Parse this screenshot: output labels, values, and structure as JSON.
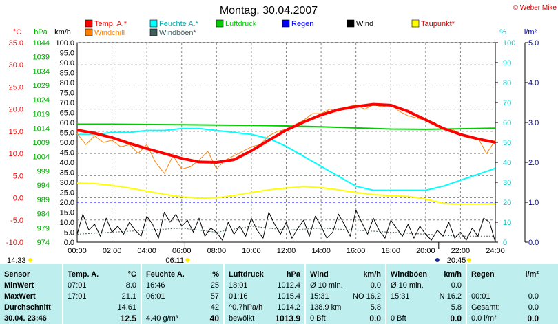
{
  "header": {
    "title": "Montag, 30.04.2007",
    "copyright": "© Weber Mike"
  },
  "legend": [
    {
      "label": "Temp. A.*",
      "color": "#ff0000"
    },
    {
      "label": "Windchill",
      "color": "#ff8000"
    },
    {
      "label": "Feuchte A.*",
      "color": "#00ffff"
    },
    {
      "label": "Windböen*",
      "color": "#406060"
    },
    {
      "label": "Luftdruck",
      "color": "#00cc00"
    },
    {
      "label": "Regen",
      "color": "#0000ff"
    },
    {
      "label": "Wind",
      "color": "#000000"
    },
    {
      "label": "Taupunkt*",
      "color": "#ffff00"
    }
  ],
  "axes": {
    "temp": {
      "unit": "°C",
      "color": "#ff0000",
      "ticks": [
        "35.0",
        "30.0",
        "25.0",
        "20.0",
        "15.0",
        "10.0",
        "5.0",
        "0.0",
        "-5.0",
        "-10.0"
      ]
    },
    "pressure": {
      "unit": "hPa",
      "color": "#00aa00",
      "ticks": [
        "1044",
        "1039",
        "1034",
        "1029",
        "1024",
        "1019",
        "1014",
        "1009",
        "1004",
        "999",
        "994",
        "989",
        "984",
        "979",
        "974"
      ]
    },
    "wind": {
      "unit": "km/h",
      "color": "#000000",
      "ticks": [
        "100.0",
        "95.0",
        "90.0",
        "85.0",
        "80.0",
        "75.0",
        "70.0",
        "65.0",
        "60.0",
        "55.0",
        "50.0",
        "45.0",
        "40.0",
        "35.0",
        "30.0",
        "25.0",
        "20.0",
        "15.0",
        "10.0",
        "5.0",
        "0.0"
      ]
    },
    "humidity": {
      "unit": "%",
      "color": "#00cccc",
      "ticks": [
        "100",
        "90",
        "80",
        "70",
        "60",
        "50",
        "40",
        "30",
        "20",
        "10",
        "0"
      ]
    },
    "rain": {
      "unit": "l/m²",
      "color": "#0000aa",
      "ticks": [
        "5.0",
        "4.0",
        "3.0",
        "2.0",
        "1.0",
        "0.0"
      ]
    },
    "time": {
      "ticks": [
        "00:00",
        "02:00",
        "04:00",
        "06:00",
        "08:00",
        "10:00",
        "12:00",
        "14:00",
        "16:00",
        "18:00",
        "20:00",
        "22:00",
        "24:00"
      ]
    }
  },
  "sun_markers": {
    "sunrise_prev": "14:33",
    "sunrise": "06:11",
    "sunset": "20:45"
  },
  "chart_data": {
    "type": "line",
    "x_unit": "hour",
    "xlim": [
      0,
      24
    ],
    "series": [
      {
        "name": "Temp. A.*",
        "axis": "°C",
        "color": "#ff0000",
        "x": [
          0,
          1,
          2,
          3,
          4,
          5,
          6,
          7,
          8,
          9,
          10,
          11,
          12,
          13,
          14,
          15,
          16,
          17,
          18,
          19,
          20,
          21,
          22,
          23,
          24
        ],
        "y": [
          15.3,
          14.6,
          13.6,
          12.3,
          11.1,
          10.0,
          8.9,
          8.1,
          8.0,
          8.6,
          10.6,
          13.0,
          15.3,
          17.1,
          18.7,
          19.9,
          20.6,
          21.1,
          20.9,
          19.5,
          17.6,
          15.7,
          14.3,
          13.3,
          12.5
        ]
      },
      {
        "name": "Windchill",
        "axis": "°C",
        "color": "#ff8000",
        "x": [
          0,
          0.5,
          1,
          1.5,
          2,
          2.5,
          3,
          3.5,
          4,
          4.5,
          5,
          5.5,
          6,
          6.5,
          7,
          7.5,
          8,
          8.5,
          9,
          9.5,
          10,
          10.5,
          11,
          11.5,
          12,
          12.5,
          13,
          13.5,
          14,
          14.5,
          15,
          15.5,
          16,
          16.5,
          17,
          17.5,
          18,
          18.5,
          19,
          19.5,
          20,
          20.5,
          21,
          21.5,
          22,
          22.5,
          23,
          23.5,
          24
        ],
        "y": [
          14.5,
          12.0,
          14.0,
          12.5,
          13.0,
          11.5,
          12.0,
          10.0,
          12.0,
          8.0,
          5.5,
          9.5,
          6.5,
          7.0,
          8.5,
          10.5,
          6.5,
          8.5,
          9.5,
          10.5,
          11.5,
          12.0,
          14.0,
          15.0,
          15.5,
          16.5,
          17.5,
          19.0,
          19.0,
          20.0,
          19.5,
          20.5,
          21.0,
          20.0,
          21.0,
          20.5,
          21.0,
          19.5,
          18.5,
          18.0,
          17.5,
          17.0,
          15.5,
          15.5,
          14.5,
          13.5,
          13.5,
          10.0,
          13.0
        ]
      },
      {
        "name": "Feuchte A.*",
        "axis": "%",
        "color": "#00ffff",
        "x": [
          0,
          1,
          2,
          3,
          4,
          5,
          6,
          7,
          8,
          9,
          10,
          11,
          12,
          13,
          14,
          15,
          16,
          17,
          18,
          19,
          20,
          21,
          22,
          23,
          24
        ],
        "y": [
          54,
          54,
          55,
          55,
          56,
          56,
          57,
          57,
          56,
          55,
          54,
          52,
          48,
          43,
          38,
          33,
          28,
          26,
          26,
          26,
          26,
          28,
          31,
          34,
          37
        ]
      },
      {
        "name": "Luftdruck",
        "axis": "hPa",
        "color": "#00cc00",
        "x": [
          0,
          2,
          4,
          6,
          8,
          10,
          12,
          14,
          16,
          18,
          20,
          22,
          24
        ],
        "y": [
          1015.4,
          1015.4,
          1015.3,
          1015.2,
          1015.1,
          1015.0,
          1014.8,
          1014.5,
          1014.1,
          1013.7,
          1013.6,
          1013.8,
          1014.0
        ]
      },
      {
        "name": "Taupunkt*",
        "axis": "°C",
        "color": "#ffff00",
        "x": [
          0,
          1,
          2,
          3,
          4,
          5,
          6,
          7,
          8,
          9,
          10,
          11,
          12,
          13,
          14,
          15,
          16,
          17,
          18,
          19,
          20,
          21,
          22,
          23,
          24
        ],
        "y": [
          3.3,
          3.2,
          2.8,
          2.2,
          1.5,
          0.8,
          0.2,
          -0.1,
          0.0,
          0.5,
          1.2,
          1.8,
          2.2,
          2.5,
          2.3,
          1.8,
          1.2,
          0.7,
          0.5,
          0.3,
          -0.3,
          -1.2,
          -1.4,
          -1.4,
          -1.3
        ]
      },
      {
        "name": "Regen",
        "axis": "l/m²",
        "color": "#0000ff",
        "x": [
          0,
          24
        ],
        "y": [
          1.0,
          1.0
        ]
      },
      {
        "name": "Wind",
        "axis": "km/h",
        "color": "#000000",
        "x": [
          0,
          0.33,
          0.67,
          1,
          1.33,
          1.67,
          2,
          2.33,
          2.67,
          3,
          3.33,
          3.67,
          4,
          4.33,
          4.67,
          5,
          5.33,
          5.67,
          6,
          6.33,
          6.67,
          7,
          7.33,
          7.67,
          8,
          8.33,
          8.67,
          9,
          9.33,
          9.67,
          10,
          10.33,
          10.67,
          11,
          11.33,
          11.67,
          12,
          12.33,
          12.67,
          13,
          13.33,
          13.67,
          14,
          14.33,
          14.67,
          15,
          15.33,
          15.67,
          16,
          16.33,
          16.67,
          17,
          17.33,
          17.67,
          18,
          18.33,
          18.67,
          19,
          19.33,
          19.67,
          20,
          20.33,
          20.67,
          21,
          21.33,
          21.67,
          22,
          22.33,
          22.67,
          23,
          23.33,
          23.67,
          24
        ],
        "y": [
          4,
          14,
          6,
          9,
          3,
          12,
          5,
          8,
          4,
          10,
          6,
          3,
          13,
          9,
          2,
          15,
          10,
          14,
          8,
          11,
          5,
          12,
          3,
          7,
          5,
          1,
          10,
          4,
          8,
          3,
          12,
          6,
          2,
          15,
          9,
          4,
          10,
          2,
          7,
          11,
          3,
          13,
          8,
          2,
          5,
          14,
          9,
          3,
          16,
          10,
          4,
          12,
          6,
          2,
          11,
          7,
          3,
          9,
          2,
          8,
          4,
          1,
          6,
          3,
          10,
          2,
          5,
          1,
          7,
          3,
          12,
          10,
          0
        ]
      },
      {
        "name": "Windböen*",
        "axis": "km/h",
        "color": "#406060",
        "x": [
          0,
          2,
          4,
          6,
          8,
          10,
          12,
          14,
          16,
          18,
          20,
          22,
          24
        ],
        "y": [
          4,
          5,
          6,
          7,
          5,
          8,
          6,
          7,
          6,
          5,
          4,
          3,
          3
        ]
      }
    ]
  },
  "table": {
    "columns": [
      {
        "name": "Sensor",
        "unit": "",
        "rows": [
          [
            "MinWert",
            ""
          ],
          [
            "MaxWert",
            ""
          ],
          [
            "Durchschnitt",
            ""
          ],
          [
            "30.04. 23:46",
            ""
          ]
        ]
      },
      {
        "name": "Temp. A.",
        "unit": "°C",
        "rows": [
          [
            "07:01",
            "8.0"
          ],
          [
            "17:01",
            "21.1"
          ],
          [
            "",
            "14.61"
          ],
          [
            "",
            "12.5"
          ]
        ]
      },
      {
        "name": "Feuchte A.",
        "unit": "%",
        "rows": [
          [
            "16:46",
            "25"
          ],
          [
            "06:01",
            "57"
          ],
          [
            "",
            "42"
          ],
          [
            "4.40 g/m³",
            "40"
          ]
        ]
      },
      {
        "name": "Luftdruck",
        "unit": "hPa",
        "rows": [
          [
            "18:01",
            "1012.4"
          ],
          [
            "01:16",
            "1015.4"
          ],
          [
            "^0.7hPa/h",
            "1014.2"
          ],
          [
            "bewölkt",
            "1013.9"
          ]
        ]
      },
      {
        "name": "Wind",
        "unit": "km/h",
        "rows": [
          [
            "Ø 10 min.",
            "0.0"
          ],
          [
            "15:31",
            "NO 16.2"
          ],
          [
            "138.9 km",
            "5.8"
          ],
          [
            "0 Bft",
            "0.0"
          ]
        ]
      },
      {
        "name": "Windböen",
        "unit": "km/h",
        "rows": [
          [
            "Ø 10 min.",
            "0.0"
          ],
          [
            "15:31",
            "N 16.2"
          ],
          [
            "",
            "5.8"
          ],
          [
            "0 Bft",
            "0.0"
          ]
        ]
      },
      {
        "name": "Regen",
        "unit": "l/m²",
        "rows": [
          [
            "",
            ""
          ],
          [
            "00:01",
            "0.0"
          ],
          [
            "Gesamt:",
            "0.0"
          ],
          [
            "0.0 l/m²",
            "0.0"
          ]
        ]
      }
    ]
  }
}
